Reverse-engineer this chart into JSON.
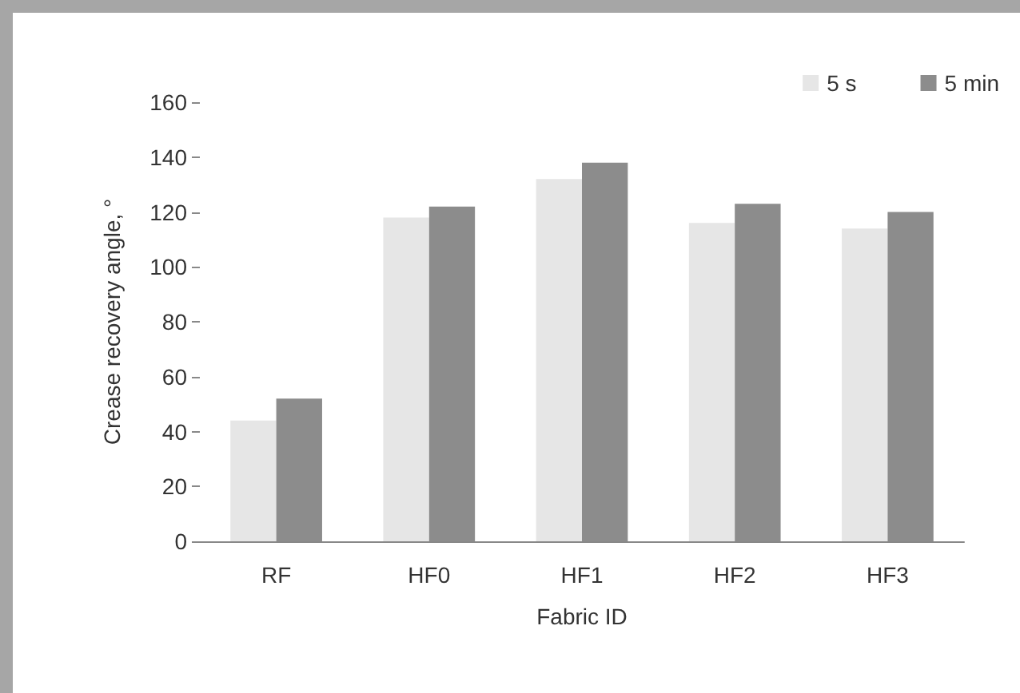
{
  "chart_data": {
    "type": "bar",
    "xlabel": "Fabric ID",
    "ylabel": "Crease recovery angle, °",
    "categories": [
      "RF",
      "HF0",
      "HF1",
      "HF2",
      "HF3"
    ],
    "series": [
      {
        "name": "5 s",
        "color": "#e6e6e6",
        "values": [
          44,
          118,
          132,
          116,
          114
        ]
      },
      {
        "name": "5 min",
        "color": "#8c8c8c",
        "values": [
          52,
          122,
          138,
          123,
          120
        ]
      }
    ],
    "ylim": [
      0,
      160
    ],
    "yticks": [
      0,
      20,
      40,
      60,
      80,
      100,
      120,
      140,
      160
    ],
    "grid": false,
    "legend": "top right"
  }
}
